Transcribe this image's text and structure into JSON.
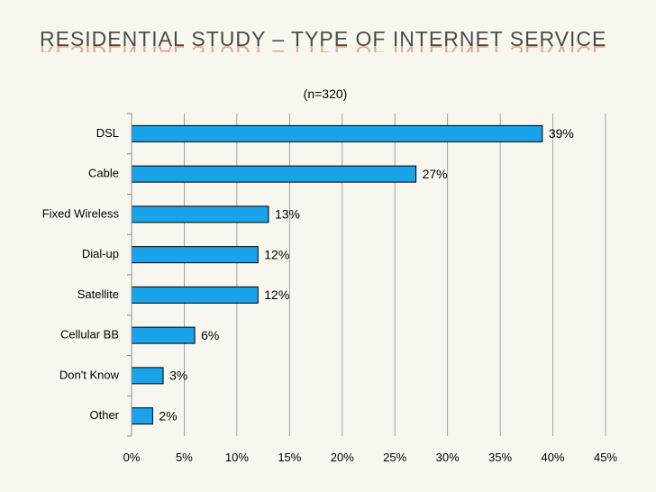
{
  "slide": {
    "title": "RESIDENTIAL STUDY – TYPE OF INTERNET SERVICE"
  },
  "chart_data": {
    "type": "bar",
    "orientation": "horizontal",
    "title": "(n=320)",
    "categories": [
      "DSL",
      "Cable",
      "Fixed Wireless",
      "Dial-up",
      "Satellite",
      "Cellular BB",
      "Don't Know",
      "Other"
    ],
    "values": [
      39,
      27,
      13,
      12,
      12,
      6,
      3,
      2
    ],
    "value_labels": [
      "39%",
      "27%",
      "13%",
      "12%",
      "12%",
      "6%",
      "3%",
      "2%"
    ],
    "xlim": [
      0,
      45
    ],
    "xticks": [
      0,
      5,
      10,
      15,
      20,
      25,
      30,
      35,
      40,
      45
    ],
    "xtick_labels": [
      "0%",
      "5%",
      "10%",
      "15%",
      "20%",
      "25%",
      "30%",
      "35%",
      "40%",
      "45%"
    ],
    "xlabel": "",
    "ylabel": "",
    "grid": "vertical",
    "colors": {
      "bar_fill": "#1aa3e8",
      "bar_edge": "#000000",
      "grid": "#8c8c8c",
      "axis": "#8c8c8c"
    }
  }
}
